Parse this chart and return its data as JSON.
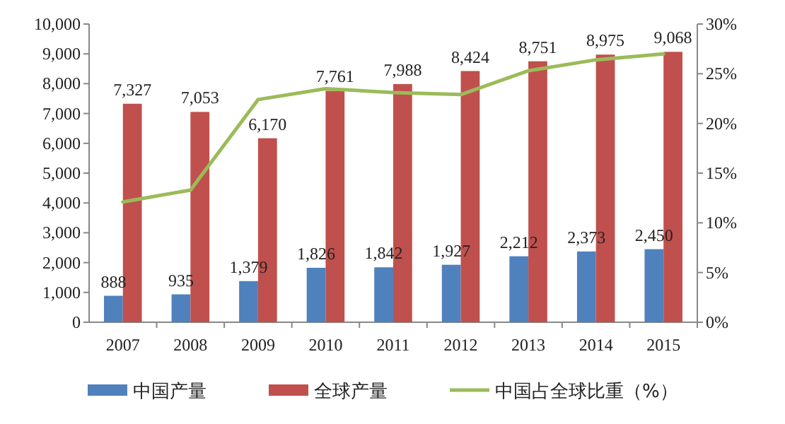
{
  "chart_data": {
    "type": "bar",
    "categories": [
      "2007",
      "2008",
      "2009",
      "2010",
      "2011",
      "2012",
      "2013",
      "2014",
      "2015"
    ],
    "series": [
      {
        "name": "中国产量",
        "color": "#4f81bd",
        "values": [
          888,
          935,
          1379,
          1826,
          1842,
          1927,
          2212,
          2373,
          2450
        ],
        "value_labels": [
          "888",
          "935",
          "1,379",
          "1,826",
          "1,842",
          "1,927",
          "2,212",
          "2,373",
          "2,450"
        ]
      },
      {
        "name": "全球产量",
        "color": "#c0504d",
        "values": [
          7327,
          7053,
          6170,
          7761,
          7988,
          8424,
          8751,
          8975,
          9068
        ],
        "value_labels": [
          "7,327",
          "7,053",
          "6,170",
          "7,761",
          "7,988",
          "8,424",
          "8,751",
          "8,975",
          "9,068"
        ]
      },
      {
        "name": "中国占全球比重（%）",
        "type": "line",
        "axis": "y2",
        "color": "#9bbb59",
        "marker": "none",
        "values": [
          12.1,
          13.3,
          22.4,
          23.5,
          23.1,
          22.9,
          25.3,
          26.4,
          27.0
        ]
      }
    ],
    "ylim": [
      0,
      10000
    ],
    "yticks": [
      0,
      {
        "value": 1000,
        "label": "1,000"
      },
      {
        "value": 2000,
        "label": "2,000"
      },
      {
        "value": 3000,
        "label": "3,000"
      },
      {
        "value": 4000,
        "label": "4,000"
      },
      {
        "value": 5000,
        "label": "5,000"
      },
      {
        "value": 6000,
        "label": "6,000"
      },
      {
        "value": 7000,
        "label": "7,000"
      },
      {
        "value": 8000,
        "label": "8,000"
      },
      {
        "value": 9000,
        "label": "9,000"
      },
      {
        "value": 10000,
        "label": "10,000"
      }
    ],
    "y2lim": [
      0,
      30
    ],
    "y2ticks": [
      {
        "value": 0,
        "label": "0%"
      },
      {
        "value": 5,
        "label": "5%"
      },
      {
        "value": 10,
        "label": "10%"
      },
      {
        "value": 15,
        "label": "15%"
      },
      {
        "value": 20,
        "label": "20%"
      },
      {
        "value": 25,
        "label": "25%"
      },
      {
        "value": 30,
        "label": "30%"
      }
    ],
    "grid": false,
    "legend": "bottom"
  }
}
